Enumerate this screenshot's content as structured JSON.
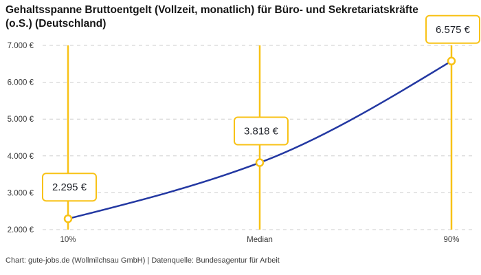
{
  "title": {
    "line1": "Gehaltsspanne Bruttoentgelt (Vollzeit, monatlich) für Büro- und Sekretariatskräfte",
    "line2": "(o.S.) (Deutschland)"
  },
  "footer": {
    "text": "Chart: gute-jobs.de (Wollmilchsau GmbH) | Datenquelle: Bundesagentur für Arbeit"
  },
  "chart_data": {
    "type": "line",
    "title": "Gehaltsspanne Bruttoentgelt (Vollzeit, monatlich) für Büro- und Sekretariatskräfte (o.S.) (Deutschland)",
    "categories": [
      "10%",
      "Median",
      "90%"
    ],
    "values": [
      2295,
      3818,
      6575
    ],
    "value_labels": [
      "2.295 €",
      "3.818 €",
      "6.575 €"
    ],
    "ylim": [
      2000,
      7000
    ],
    "y_tick_step": 1000,
    "y_tick_labels_top_to_bottom": [
      "7.000 €",
      "6.000 €",
      "5.000 €",
      "4.000 €",
      "3.000 €",
      "2.000 €"
    ],
    "grid": "horizontal-dashed",
    "legend": "none",
    "curve": "smooth-monotone",
    "colors": {
      "line": "#2338A2",
      "highlight": "#F8C216",
      "marker_fill": "#FFFFFF",
      "grid": "#CCCCCC",
      "title_text": "#161616",
      "axis_text": "#3A3A3A",
      "value_text": "#1F2229",
      "footer_text": "#3D3D3D",
      "background": "#FFFFFF"
    }
  }
}
